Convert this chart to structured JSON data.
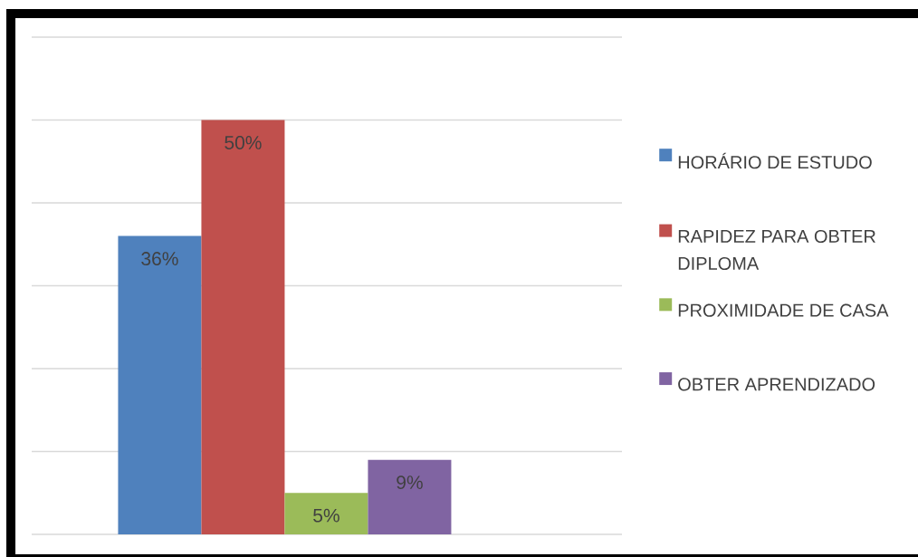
{
  "chart_data": {
    "type": "bar",
    "categories": [
      null
    ],
    "series": [
      {
        "name": "HORÁRIO DE ESTUDO",
        "color": "#4f81bd",
        "values": [
          36
        ],
        "value_labels": [
          "36%"
        ]
      },
      {
        "name": "RAPIDEZ PARA OBTER DIPLOMA",
        "color": "#c0504d",
        "values": [
          50
        ],
        "value_labels": [
          "50%"
        ]
      },
      {
        "name": "PROXIMIDADE DE CASA",
        "color": "#9bbb59",
        "values": [
          5
        ],
        "value_labels": [
          "5%"
        ]
      },
      {
        "name": "OBTER APRENDIZADO",
        "color": "#8064a2",
        "values": [
          9
        ],
        "value_labels": [
          "9%"
        ]
      }
    ],
    "ylim": [
      0,
      60
    ],
    "yticks": [
      {
        "value": 0,
        "label": null
      },
      {
        "value": 10,
        "label": null
      },
      {
        "value": 20,
        "label": null
      },
      {
        "value": 30,
        "label": null
      },
      {
        "value": 40,
        "label": null
      },
      {
        "value": 50,
        "label": null
      },
      {
        "value": 60,
        "label": null
      }
    ],
    "grid": "y",
    "legend": "right"
  }
}
